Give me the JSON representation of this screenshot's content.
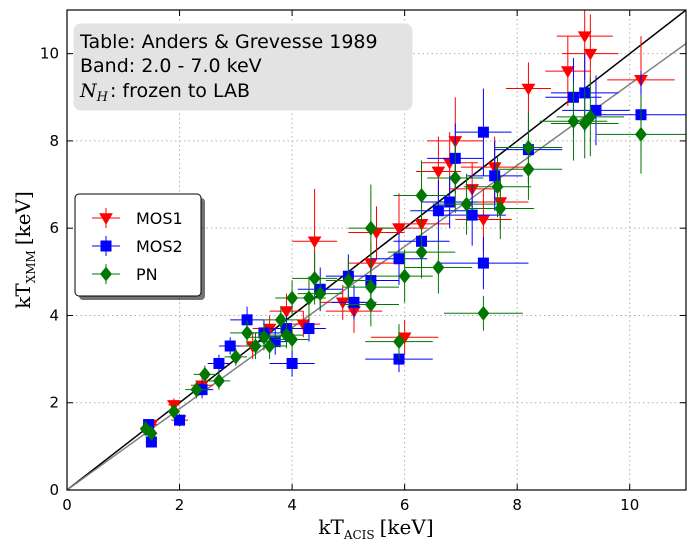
{
  "chart_data": {
    "type": "scatter",
    "xlabel": "kT_ACIS [keV]",
    "xlabel_parts": {
      "main": "kT",
      "sub": "ACIS",
      "unit": "[keV]"
    },
    "ylabel": "kT_XMM [keV]",
    "ylabel_parts": {
      "main": "kT",
      "sub": "XMM",
      "unit": "[keV]"
    },
    "xlim": [
      0,
      11
    ],
    "ylim": [
      0,
      11
    ],
    "xticks": [
      0,
      2,
      4,
      6,
      8,
      10
    ],
    "yticks": [
      0,
      2,
      4,
      6,
      8,
      10
    ],
    "grid": true,
    "annotation": {
      "line1": "Table: Anders & Grevesse 1989",
      "line2": "Band: 2.0 - 7.0 keV",
      "line3_symbol": "N",
      "line3_sub": "H",
      "line3_rest": ": frozen to LAB"
    },
    "legend": {
      "position": "center-left",
      "entries": [
        "MOS1",
        "MOS2",
        "PN"
      ]
    },
    "colors": {
      "MOS1": "#ff0000",
      "MOS2": "#0000ff",
      "PN": "#007700",
      "identity": "#000000",
      "fit": "#808080"
    },
    "lines": [
      {
        "name": "identity",
        "slope": 1.0,
        "intercept": 0.0
      },
      {
        "name": "fit",
        "slope": 0.93,
        "intercept": 0.0
      }
    ],
    "series": [
      {
        "name": "MOS1",
        "marker": "triangle-down",
        "points": [
          {
            "x": 1.5,
            "y": 1.5,
            "ex": 0.1,
            "ey": 0.1
          },
          {
            "x": 1.9,
            "y": 1.95,
            "ex": 0.1,
            "ey": 0.15
          },
          {
            "x": 2.0,
            "y": 1.6,
            "ex": 0.15,
            "ey": 0.15
          },
          {
            "x": 2.4,
            "y": 2.4,
            "ex": 0.2,
            "ey": 0.2
          },
          {
            "x": 3.3,
            "y": 3.3,
            "ex": 0.3,
            "ey": 0.3
          },
          {
            "x": 3.6,
            "y": 3.7,
            "ex": 0.3,
            "ey": 0.3
          },
          {
            "x": 3.9,
            "y": 4.1,
            "ex": 0.3,
            "ey": 0.4
          },
          {
            "x": 4.2,
            "y": 3.8,
            "ex": 0.3,
            "ey": 0.3
          },
          {
            "x": 4.4,
            "y": 5.7,
            "ex": 0.4,
            "ey": 1.2
          },
          {
            "x": 4.9,
            "y": 4.3,
            "ex": 0.4,
            "ey": 0.4
          },
          {
            "x": 5.1,
            "y": 4.1,
            "ex": 0.5,
            "ey": 0.5
          },
          {
            "x": 5.4,
            "y": 5.2,
            "ex": 0.4,
            "ey": 0.5
          },
          {
            "x": 5.5,
            "y": 5.9,
            "ex": 0.5,
            "ey": 0.6
          },
          {
            "x": 5.9,
            "y": 6.0,
            "ex": 0.5,
            "ey": 0.8
          },
          {
            "x": 6.0,
            "y": 3.5,
            "ex": 0.6,
            "ey": 0.4
          },
          {
            "x": 6.3,
            "y": 6.1,
            "ex": 0.5,
            "ey": 0.6
          },
          {
            "x": 6.6,
            "y": 7.3,
            "ex": 0.4,
            "ey": 0.8
          },
          {
            "x": 6.8,
            "y": 7.5,
            "ex": 0.5,
            "ey": 0.7
          },
          {
            "x": 6.9,
            "y": 8.0,
            "ex": 0.5,
            "ey": 1.0
          },
          {
            "x": 7.2,
            "y": 6.9,
            "ex": 0.4,
            "ey": 0.6
          },
          {
            "x": 7.4,
            "y": 6.2,
            "ex": 0.5,
            "ey": 0.7
          },
          {
            "x": 7.6,
            "y": 7.4,
            "ex": 0.6,
            "ey": 0.7
          },
          {
            "x": 7.7,
            "y": 6.6,
            "ex": 0.5,
            "ey": 0.6
          },
          {
            "x": 8.2,
            "y": 9.2,
            "ex": 0.4,
            "ey": 0.6
          },
          {
            "x": 8.9,
            "y": 9.6,
            "ex": 0.4,
            "ey": 0.8
          },
          {
            "x": 9.2,
            "y": 10.4,
            "ex": 0.5,
            "ey": 1.0
          },
          {
            "x": 9.3,
            "y": 10.0,
            "ex": 0.5,
            "ey": 0.9
          },
          {
            "x": 10.2,
            "y": 9.4,
            "ex": 0.6,
            "ey": 1.0
          }
        ]
      },
      {
        "name": "MOS2",
        "marker": "square",
        "points": [
          {
            "x": 1.45,
            "y": 1.5,
            "ex": 0.1,
            "ey": 0.1
          },
          {
            "x": 1.5,
            "y": 1.1,
            "ex": 0.1,
            "ey": 0.1
          },
          {
            "x": 2.0,
            "y": 1.6,
            "ex": 0.1,
            "ey": 0.1
          },
          {
            "x": 2.4,
            "y": 2.3,
            "ex": 0.2,
            "ey": 0.2
          },
          {
            "x": 2.7,
            "y": 2.9,
            "ex": 0.2,
            "ey": 0.2
          },
          {
            "x": 2.9,
            "y": 3.3,
            "ex": 0.2,
            "ey": 0.2
          },
          {
            "x": 3.2,
            "y": 3.9,
            "ex": 0.3,
            "ey": 0.3
          },
          {
            "x": 3.5,
            "y": 3.6,
            "ex": 0.3,
            "ey": 0.3
          },
          {
            "x": 3.7,
            "y": 3.4,
            "ex": 0.3,
            "ey": 0.3
          },
          {
            "x": 3.9,
            "y": 3.7,
            "ex": 0.3,
            "ey": 0.3
          },
          {
            "x": 4.0,
            "y": 2.9,
            "ex": 0.4,
            "ey": 0.3
          },
          {
            "x": 4.3,
            "y": 3.7,
            "ex": 0.3,
            "ey": 0.3
          },
          {
            "x": 4.5,
            "y": 4.6,
            "ex": 0.4,
            "ey": 0.5
          },
          {
            "x": 5.0,
            "y": 4.9,
            "ex": 0.4,
            "ey": 0.5
          },
          {
            "x": 5.1,
            "y": 4.3,
            "ex": 0.4,
            "ey": 0.4
          },
          {
            "x": 5.4,
            "y": 4.8,
            "ex": 0.5,
            "ey": 0.5
          },
          {
            "x": 5.9,
            "y": 5.3,
            "ex": 0.5,
            "ey": 0.6
          },
          {
            "x": 5.9,
            "y": 3.0,
            "ex": 0.6,
            "ey": 0.3
          },
          {
            "x": 6.3,
            "y": 5.7,
            "ex": 0.5,
            "ey": 0.6
          },
          {
            "x": 6.6,
            "y": 6.4,
            "ex": 0.5,
            "ey": 0.7
          },
          {
            "x": 6.8,
            "y": 6.6,
            "ex": 0.5,
            "ey": 0.6
          },
          {
            "x": 6.9,
            "y": 7.6,
            "ex": 0.5,
            "ey": 0.8
          },
          {
            "x": 7.2,
            "y": 6.3,
            "ex": 0.6,
            "ey": 0.7
          },
          {
            "x": 7.4,
            "y": 8.2,
            "ex": 0.5,
            "ey": 1.0
          },
          {
            "x": 7.4,
            "y": 5.2,
            "ex": 0.8,
            "ey": 0.6
          },
          {
            "x": 7.6,
            "y": 7.2,
            "ex": 0.5,
            "ey": 0.8
          },
          {
            "x": 8.2,
            "y": 7.8,
            "ex": 0.6,
            "ey": 0.8
          },
          {
            "x": 9.0,
            "y": 9.0,
            "ex": 0.5,
            "ey": 0.9
          },
          {
            "x": 9.2,
            "y": 9.1,
            "ex": 0.6,
            "ey": 0.9
          },
          {
            "x": 9.4,
            "y": 8.7,
            "ex": 0.6,
            "ey": 0.8
          },
          {
            "x": 10.2,
            "y": 8.6,
            "ex": 0.8,
            "ey": 1.0
          }
        ]
      },
      {
        "name": "PN",
        "marker": "diamond",
        "points": [
          {
            "x": 1.4,
            "y": 1.4,
            "ex": 0.1,
            "ey": 0.1
          },
          {
            "x": 1.5,
            "y": 1.3,
            "ex": 0.1,
            "ey": 0.1
          },
          {
            "x": 1.9,
            "y": 1.8,
            "ex": 0.1,
            "ey": 0.1
          },
          {
            "x": 2.3,
            "y": 2.3,
            "ex": 0.2,
            "ey": 0.2
          },
          {
            "x": 2.45,
            "y": 2.65,
            "ex": 0.2,
            "ey": 0.2
          },
          {
            "x": 2.7,
            "y": 2.5,
            "ex": 0.2,
            "ey": 0.2
          },
          {
            "x": 3.0,
            "y": 3.05,
            "ex": 0.2,
            "ey": 0.2
          },
          {
            "x": 3.2,
            "y": 3.6,
            "ex": 0.3,
            "ey": 0.3
          },
          {
            "x": 3.35,
            "y": 3.3,
            "ex": 0.2,
            "ey": 0.3
          },
          {
            "x": 3.5,
            "y": 3.5,
            "ex": 0.3,
            "ey": 0.3
          },
          {
            "x": 3.6,
            "y": 3.3,
            "ex": 0.3,
            "ey": 0.3
          },
          {
            "x": 3.8,
            "y": 3.9,
            "ex": 0.3,
            "ey": 0.3
          },
          {
            "x": 3.9,
            "y": 3.55,
            "ex": 0.3,
            "ey": 0.3
          },
          {
            "x": 4.0,
            "y": 4.4,
            "ex": 0.3,
            "ey": 0.4
          },
          {
            "x": 4.0,
            "y": 3.45,
            "ex": 0.3,
            "ey": 0.3
          },
          {
            "x": 4.3,
            "y": 4.4,
            "ex": 0.3,
            "ey": 0.5
          },
          {
            "x": 4.4,
            "y": 4.85,
            "ex": 0.4,
            "ey": 0.6
          },
          {
            "x": 4.5,
            "y": 4.5,
            "ex": 0.4,
            "ey": 0.4
          },
          {
            "x": 5.0,
            "y": 4.8,
            "ex": 0.4,
            "ey": 0.5
          },
          {
            "x": 5.4,
            "y": 6.0,
            "ex": 0.4,
            "ey": 1.0
          },
          {
            "x": 5.4,
            "y": 4.65,
            "ex": 0.5,
            "ey": 0.5
          },
          {
            "x": 5.4,
            "y": 4.25,
            "ex": 0.5,
            "ey": 0.5
          },
          {
            "x": 5.9,
            "y": 3.4,
            "ex": 0.6,
            "ey": 0.4
          },
          {
            "x": 6.0,
            "y": 4.9,
            "ex": 0.5,
            "ey": 0.6
          },
          {
            "x": 6.3,
            "y": 6.75,
            "ex": 0.5,
            "ey": 0.8
          },
          {
            "x": 6.3,
            "y": 5.45,
            "ex": 0.6,
            "ey": 0.6
          },
          {
            "x": 6.6,
            "y": 5.1,
            "ex": 0.6,
            "ey": 0.6
          },
          {
            "x": 6.9,
            "y": 7.15,
            "ex": 0.5,
            "ey": 0.8
          },
          {
            "x": 7.1,
            "y": 6.55,
            "ex": 0.6,
            "ey": 0.7
          },
          {
            "x": 7.4,
            "y": 4.05,
            "ex": 0.7,
            "ey": 0.4
          },
          {
            "x": 7.65,
            "y": 6.95,
            "ex": 0.6,
            "ey": 0.7
          },
          {
            "x": 7.7,
            "y": 6.45,
            "ex": 0.6,
            "ey": 0.7
          },
          {
            "x": 8.2,
            "y": 7.85,
            "ex": 0.6,
            "ey": 0.8
          },
          {
            "x": 8.2,
            "y": 7.35,
            "ex": 0.6,
            "ey": 0.7
          },
          {
            "x": 9.0,
            "y": 8.45,
            "ex": 0.6,
            "ey": 0.9
          },
          {
            "x": 9.2,
            "y": 8.4,
            "ex": 0.6,
            "ey": 0.8
          },
          {
            "x": 9.3,
            "y": 8.55,
            "ex": 0.6,
            "ey": 0.9
          },
          {
            "x": 10.2,
            "y": 8.15,
            "ex": 0.8,
            "ey": 0.9
          }
        ]
      }
    ]
  }
}
